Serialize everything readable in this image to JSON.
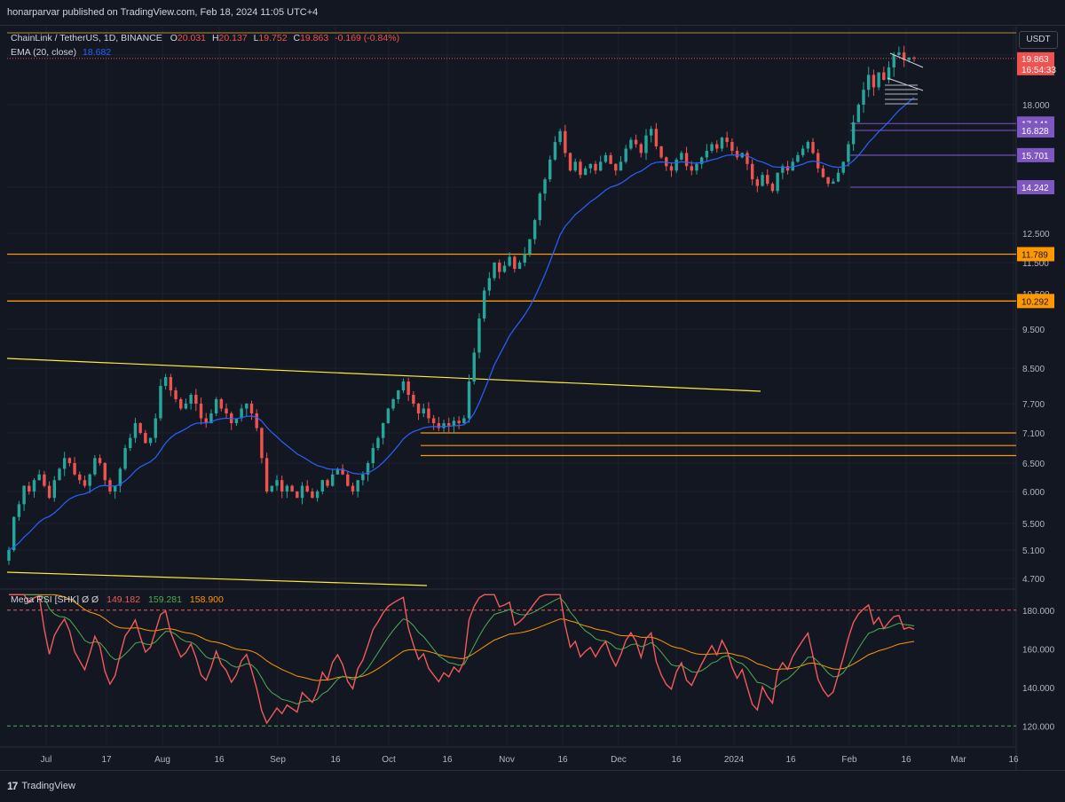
{
  "header": {
    "published_text": "honarparvar published on TradingView.com, Feb 18, 2024 11:05 UTC+4"
  },
  "footer": {
    "logo_text": "TradingView"
  },
  "currency": "USDT",
  "legend": {
    "symbol": "ChainLink / TetherUS, 1D, BINANCE",
    "o_label": "O",
    "o_value": "20.031",
    "h_label": "H",
    "h_value": "20.137",
    "l_label": "L",
    "l_value": "19.752",
    "c_label": "C",
    "c_value": "19.863",
    "change": "-0.169 (-0.84%)",
    "ema_label": "EMA (20, close)",
    "ema_value": "18.682",
    "rsi_label": "Mega RSI [SHK]  Ø  Ø",
    "rsi_v1": "149.182",
    "rsi_v2": "159.281",
    "rsi_v3": "158.900"
  },
  "colors": {
    "background": "#131722",
    "up": "#26a69a",
    "down": "#ef5350",
    "ema": "#2962ff",
    "orange_level": "#ff9800",
    "purple_level": "#7e57c2",
    "trendline": "#ffeb3b",
    "rsi_main": "#f15b5b",
    "rsi_green": "#4caf50",
    "rsi_orange": "#ff9800"
  },
  "chart_data": {
    "type": "candlestick",
    "price_axis_ticks": [
      "18.000",
      "12.500",
      "11.500",
      "10.500",
      "9.500",
      "8.500",
      "7.700",
      "7.100",
      "6.500",
      "6.000",
      "5.500",
      "5.100",
      "4.700"
    ],
    "time_axis_ticks": [
      "Jul",
      "17",
      "Aug",
      "16",
      "Sep",
      "16",
      "Oct",
      "16",
      "Nov",
      "16",
      "Dec",
      "16",
      "2024",
      "16",
      "Feb",
      "16",
      "Mar",
      "16"
    ],
    "last_price": "19.863",
    "countdown": "16:54:33",
    "price_levels": [
      {
        "value": "17.141",
        "color": "purple"
      },
      {
        "value": "16.828",
        "color": "purple"
      },
      {
        "value": "15.701",
        "color": "purple"
      },
      {
        "value": "14.242",
        "color": "purple"
      },
      {
        "value": "11.789",
        "color": "orange"
      },
      {
        "value": "10.292",
        "color": "orange"
      }
    ],
    "support_zone_lines": [
      7.1,
      6.85,
      6.65
    ],
    "close_series": [
      5.1,
      5.6,
      5.8,
      6.1,
      6.0,
      6.2,
      6.3,
      6.1,
      5.9,
      6.2,
      6.4,
      6.6,
      6.5,
      6.3,
      6.2,
      6.1,
      6.3,
      6.6,
      6.5,
      6.2,
      6.0,
      6.1,
      6.4,
      6.8,
      7.0,
      7.3,
      7.1,
      6.9,
      7.0,
      7.4,
      8.1,
      8.3,
      8.0,
      7.8,
      7.6,
      7.7,
      7.9,
      7.7,
      7.4,
      7.3,
      7.5,
      7.8,
      7.6,
      7.5,
      7.3,
      7.4,
      7.6,
      7.7,
      7.5,
      7.2,
      6.6,
      6.0,
      6.1,
      6.2,
      6.0,
      6.1,
      6.0,
      5.9,
      6.1,
      6.0,
      5.9,
      6.0,
      6.2,
      6.1,
      6.3,
      6.4,
      6.3,
      6.1,
      6.0,
      6.2,
      6.3,
      6.5,
      6.8,
      7.0,
      7.3,
      7.6,
      7.8,
      8.0,
      8.2,
      7.9,
      7.7,
      7.5,
      7.6,
      7.4,
      7.3,
      7.2,
      7.3,
      7.25,
      7.35,
      7.3,
      7.4,
      8.2,
      8.9,
      9.8,
      10.6,
      11.0,
      11.5,
      11.2,
      11.4,
      11.7,
      11.3,
      11.5,
      11.8,
      12.3,
      13.0,
      14.0,
      14.6,
      15.5,
      16.3,
      16.8,
      15.8,
      15.0,
      15.4,
      14.8,
      15.1,
      15.3,
      15.0,
      15.4,
      15.7,
      15.3,
      15.0,
      15.4,
      16.0,
      16.4,
      16.2,
      15.8,
      16.6,
      16.9,
      16.1,
      15.6,
      15.2,
      15.0,
      15.5,
      15.8,
      15.2,
      15.0,
      15.3,
      15.6,
      15.9,
      16.2,
      16.0,
      16.5,
      16.3,
      15.9,
      15.6,
      15.8,
      15.3,
      14.6,
      14.3,
      14.8,
      14.4,
      14.1,
      14.9,
      15.2,
      15.0,
      15.4,
      15.7,
      16.0,
      16.3,
      15.8,
      15.1,
      14.7,
      14.4,
      14.5,
      14.9,
      15.4,
      16.2,
      17.2,
      18.0,
      18.6,
      19.2,
      18.7,
      19.3,
      19.0,
      19.5,
      20.0,
      20.1,
      19.8,
      19.9,
      19.863
    ],
    "rsi_axis_ticks": [
      "180.000",
      "160.000",
      "140.000",
      "120.000"
    ],
    "rsi_bands": [
      180,
      120
    ]
  }
}
